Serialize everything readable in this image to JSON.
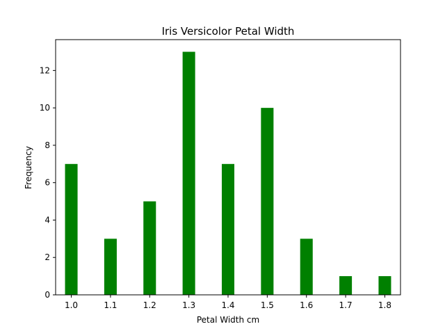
{
  "chart_data": {
    "type": "bar",
    "title": "Iris Versicolor Petal Width",
    "xlabel": "Petal Width cm",
    "ylabel": "Frequency",
    "x": [
      1.0,
      1.1,
      1.2,
      1.3,
      1.4,
      1.5,
      1.6,
      1.7,
      1.8
    ],
    "values": [
      7,
      3,
      5,
      13,
      7,
      10,
      3,
      1,
      1
    ],
    "xlim": [
      0.96,
      1.84
    ],
    "ylim": [
      0,
      13.65
    ],
    "xticks": [
      "1.0",
      "1.1",
      "1.2",
      "1.3",
      "1.4",
      "1.5",
      "1.6",
      "1.7",
      "1.8"
    ],
    "yticks": [
      "0",
      "2",
      "4",
      "6",
      "8",
      "10",
      "12"
    ],
    "bar_color": "#008000",
    "grid": false,
    "legend": "none"
  }
}
